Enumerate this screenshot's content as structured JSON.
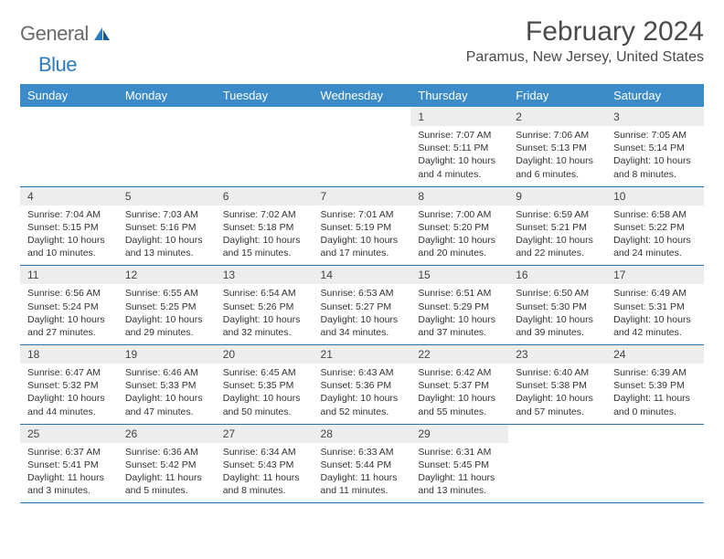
{
  "logo": {
    "general": "General",
    "blue": "Blue"
  },
  "title": "February 2024",
  "location": "Paramus, New Jersey, United States",
  "colors": {
    "header_bg": "#3b8bc9",
    "header_text": "#ffffff",
    "daynum_bg": "#ededed",
    "border": "#2b6fa8",
    "logo_gray": "#6a6a6a",
    "logo_blue": "#2b7bbf"
  },
  "day_names": [
    "Sunday",
    "Monday",
    "Tuesday",
    "Wednesday",
    "Thursday",
    "Friday",
    "Saturday"
  ],
  "weeks": [
    [
      null,
      null,
      null,
      null,
      {
        "n": "1",
        "rise": "Sunrise: 7:07 AM",
        "set": "Sunset: 5:11 PM",
        "dl": "Daylight: 10 hours and 4 minutes."
      },
      {
        "n": "2",
        "rise": "Sunrise: 7:06 AM",
        "set": "Sunset: 5:13 PM",
        "dl": "Daylight: 10 hours and 6 minutes."
      },
      {
        "n": "3",
        "rise": "Sunrise: 7:05 AM",
        "set": "Sunset: 5:14 PM",
        "dl": "Daylight: 10 hours and 8 minutes."
      }
    ],
    [
      {
        "n": "4",
        "rise": "Sunrise: 7:04 AM",
        "set": "Sunset: 5:15 PM",
        "dl": "Daylight: 10 hours and 10 minutes."
      },
      {
        "n": "5",
        "rise": "Sunrise: 7:03 AM",
        "set": "Sunset: 5:16 PM",
        "dl": "Daylight: 10 hours and 13 minutes."
      },
      {
        "n": "6",
        "rise": "Sunrise: 7:02 AM",
        "set": "Sunset: 5:18 PM",
        "dl": "Daylight: 10 hours and 15 minutes."
      },
      {
        "n": "7",
        "rise": "Sunrise: 7:01 AM",
        "set": "Sunset: 5:19 PM",
        "dl": "Daylight: 10 hours and 17 minutes."
      },
      {
        "n": "8",
        "rise": "Sunrise: 7:00 AM",
        "set": "Sunset: 5:20 PM",
        "dl": "Daylight: 10 hours and 20 minutes."
      },
      {
        "n": "9",
        "rise": "Sunrise: 6:59 AM",
        "set": "Sunset: 5:21 PM",
        "dl": "Daylight: 10 hours and 22 minutes."
      },
      {
        "n": "10",
        "rise": "Sunrise: 6:58 AM",
        "set": "Sunset: 5:22 PM",
        "dl": "Daylight: 10 hours and 24 minutes."
      }
    ],
    [
      {
        "n": "11",
        "rise": "Sunrise: 6:56 AM",
        "set": "Sunset: 5:24 PM",
        "dl": "Daylight: 10 hours and 27 minutes."
      },
      {
        "n": "12",
        "rise": "Sunrise: 6:55 AM",
        "set": "Sunset: 5:25 PM",
        "dl": "Daylight: 10 hours and 29 minutes."
      },
      {
        "n": "13",
        "rise": "Sunrise: 6:54 AM",
        "set": "Sunset: 5:26 PM",
        "dl": "Daylight: 10 hours and 32 minutes."
      },
      {
        "n": "14",
        "rise": "Sunrise: 6:53 AM",
        "set": "Sunset: 5:27 PM",
        "dl": "Daylight: 10 hours and 34 minutes."
      },
      {
        "n": "15",
        "rise": "Sunrise: 6:51 AM",
        "set": "Sunset: 5:29 PM",
        "dl": "Daylight: 10 hours and 37 minutes."
      },
      {
        "n": "16",
        "rise": "Sunrise: 6:50 AM",
        "set": "Sunset: 5:30 PM",
        "dl": "Daylight: 10 hours and 39 minutes."
      },
      {
        "n": "17",
        "rise": "Sunrise: 6:49 AM",
        "set": "Sunset: 5:31 PM",
        "dl": "Daylight: 10 hours and 42 minutes."
      }
    ],
    [
      {
        "n": "18",
        "rise": "Sunrise: 6:47 AM",
        "set": "Sunset: 5:32 PM",
        "dl": "Daylight: 10 hours and 44 minutes."
      },
      {
        "n": "19",
        "rise": "Sunrise: 6:46 AM",
        "set": "Sunset: 5:33 PM",
        "dl": "Daylight: 10 hours and 47 minutes."
      },
      {
        "n": "20",
        "rise": "Sunrise: 6:45 AM",
        "set": "Sunset: 5:35 PM",
        "dl": "Daylight: 10 hours and 50 minutes."
      },
      {
        "n": "21",
        "rise": "Sunrise: 6:43 AM",
        "set": "Sunset: 5:36 PM",
        "dl": "Daylight: 10 hours and 52 minutes."
      },
      {
        "n": "22",
        "rise": "Sunrise: 6:42 AM",
        "set": "Sunset: 5:37 PM",
        "dl": "Daylight: 10 hours and 55 minutes."
      },
      {
        "n": "23",
        "rise": "Sunrise: 6:40 AM",
        "set": "Sunset: 5:38 PM",
        "dl": "Daylight: 10 hours and 57 minutes."
      },
      {
        "n": "24",
        "rise": "Sunrise: 6:39 AM",
        "set": "Sunset: 5:39 PM",
        "dl": "Daylight: 11 hours and 0 minutes."
      }
    ],
    [
      {
        "n": "25",
        "rise": "Sunrise: 6:37 AM",
        "set": "Sunset: 5:41 PM",
        "dl": "Daylight: 11 hours and 3 minutes."
      },
      {
        "n": "26",
        "rise": "Sunrise: 6:36 AM",
        "set": "Sunset: 5:42 PM",
        "dl": "Daylight: 11 hours and 5 minutes."
      },
      {
        "n": "27",
        "rise": "Sunrise: 6:34 AM",
        "set": "Sunset: 5:43 PM",
        "dl": "Daylight: 11 hours and 8 minutes."
      },
      {
        "n": "28",
        "rise": "Sunrise: 6:33 AM",
        "set": "Sunset: 5:44 PM",
        "dl": "Daylight: 11 hours and 11 minutes."
      },
      {
        "n": "29",
        "rise": "Sunrise: 6:31 AM",
        "set": "Sunset: 5:45 PM",
        "dl": "Daylight: 11 hours and 13 minutes."
      },
      null,
      null
    ]
  ]
}
